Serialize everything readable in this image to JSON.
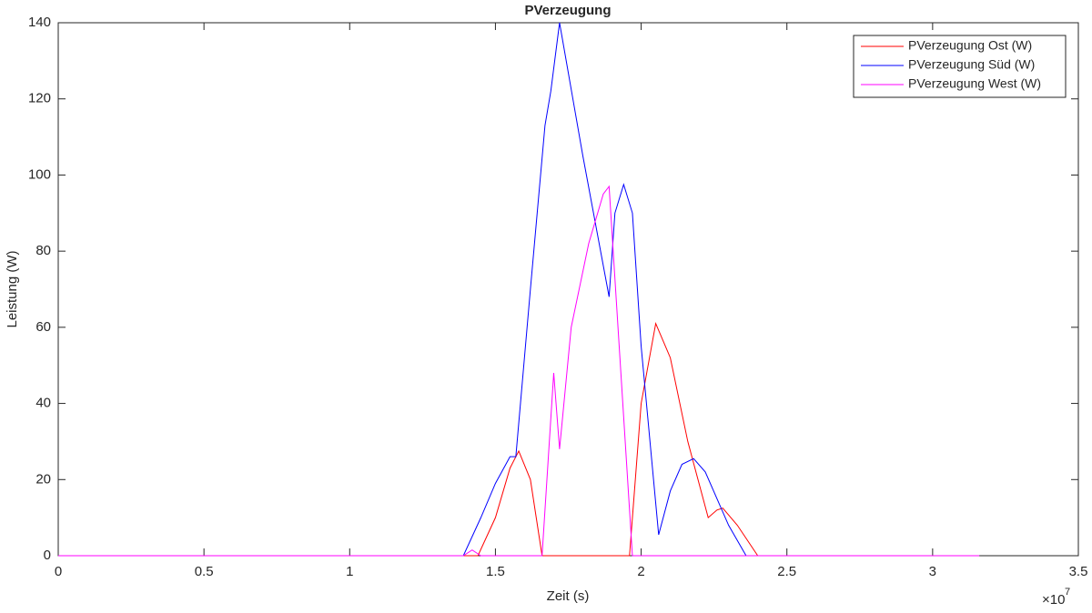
{
  "chart_data": {
    "type": "line",
    "title": "PVerzeugung",
    "x_label": "Zeit (s)",
    "y_label": "Leistung (W)",
    "x_exponent_base": "×10",
    "x_exponent": "7",
    "xlim": [
      0,
      3.5
    ],
    "xticks": [
      0,
      0.5,
      1,
      1.5,
      2,
      2.5,
      3,
      3.5
    ],
    "ylim": [
      0,
      140
    ],
    "yticks": [
      0,
      20,
      40,
      60,
      80,
      100,
      120,
      140
    ],
    "legend_position": "top-right",
    "series": [
      {
        "name": "PVerzeugung Ost (W)",
        "color": "#ff0000",
        "x": [
          0,
          1.44,
          1.5,
          1.55,
          1.58,
          1.62,
          1.66,
          1.96,
          2.0,
          2.05,
          2.1,
          2.16,
          2.23,
          2.26,
          2.28,
          2.33,
          2.4,
          3.16
        ],
        "values": [
          0,
          0,
          10,
          23,
          27.5,
          20,
          0,
          0,
          40,
          61,
          52,
          30,
          10,
          12,
          12.5,
          8,
          0,
          0
        ]
      },
      {
        "name": "PVerzeugung Süd (W)",
        "color": "#0000ff",
        "x": [
          0,
          1.39,
          1.45,
          1.5,
          1.55,
          1.57,
          1.62,
          1.67,
          1.69,
          1.72,
          1.8,
          1.89,
          1.91,
          1.94,
          1.97,
          2.0,
          2.06,
          2.1,
          2.14,
          2.18,
          2.22,
          2.3,
          2.36,
          3.16
        ],
        "values": [
          0,
          0,
          10,
          19,
          26,
          26,
          70,
          113,
          122,
          140,
          105,
          68,
          90,
          97.5,
          90,
          55,
          5.5,
          17,
          24,
          25.5,
          22,
          8,
          0,
          0
        ]
      },
      {
        "name": "PVerzeugung West (W)",
        "color": "#ff00ff",
        "x": [
          0,
          1.39,
          1.42,
          1.45,
          1.66,
          1.7,
          1.72,
          1.76,
          1.82,
          1.87,
          1.89,
          1.97,
          3.16
        ],
        "values": [
          0,
          0,
          1.5,
          0,
          0,
          48,
          28,
          60,
          82,
          95,
          97,
          0,
          0
        ]
      }
    ]
  }
}
